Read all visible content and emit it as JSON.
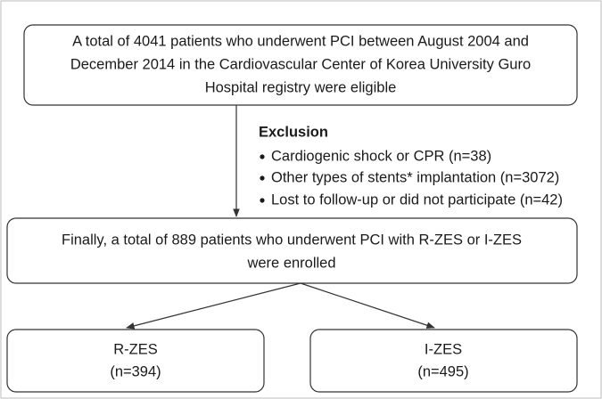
{
  "nodes": [
    {
      "lines": [
        "A total of 4041 patients who underwent PCI between August 2004 and",
        "December 2014 in the Cardiovascular Center of Korea University Guro",
        "Hospital registry were eligible"
      ]
    },
    {
      "lines": [
        "Finally, a total of 889 patients who underwent PCI with R-ZES or I-ZES",
        "were enrolled"
      ]
    },
    {
      "lines": [
        "R-ZES",
        "(n=394)"
      ]
    },
    {
      "lines": [
        "I-ZES",
        "(n=495)"
      ]
    }
  ],
  "exclusion": {
    "title": "Exclusion",
    "items": [
      "Cardiogenic shock or CPR (n=38)",
      "Other types of stents* implantation (n=3072)",
      "Lost to follow-up or did not participate (n=42)"
    ]
  }
}
